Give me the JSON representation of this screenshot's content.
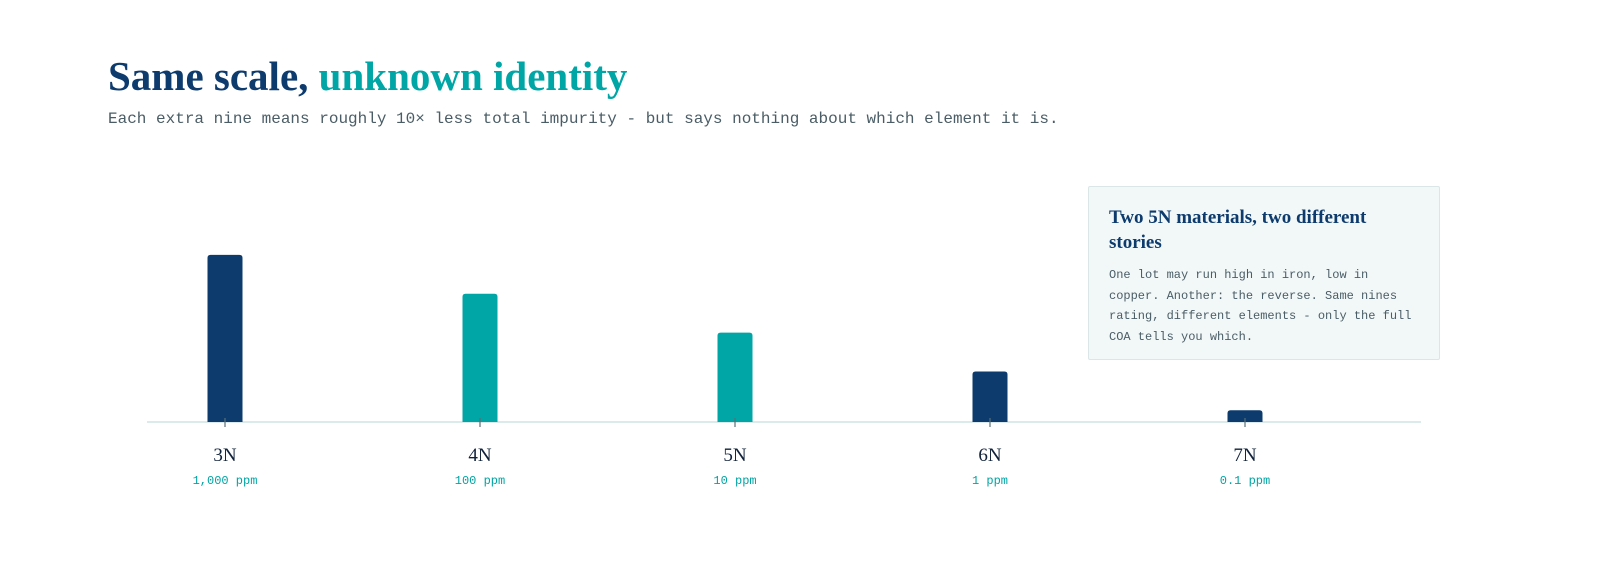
{
  "chart_data": {
    "type": "bar",
    "title": "Same scale,",
    "title_highlight": "unknown identity",
    "subtitle": "Each extra nine means roughly 10× less total impurity - but says nothing about which element it is.",
    "categories": [
      "3N",
      "4N",
      "5N",
      "6N",
      "7N"
    ],
    "values": [
      1000,
      100,
      10,
      1,
      0.1
    ],
    "value_labels": [
      "1,000 ppm",
      "100 ppm",
      "10 ppm",
      "1 ppm",
      "0.1 ppm"
    ],
    "colors": [
      "#0d3b6e",
      "#00a5a5",
      "#00a5a5",
      "#0d3b6e",
      "#0d3b6e"
    ],
    "log_scale": true,
    "ylim": [
      0.05,
      10000
    ],
    "annotation": {
      "title": "Two 5N materials, two different stories",
      "text": "One lot may run high in iron, low in copper. Another: the reverse. Same nines rating, different elements - only the full COA tells you which."
    }
  }
}
